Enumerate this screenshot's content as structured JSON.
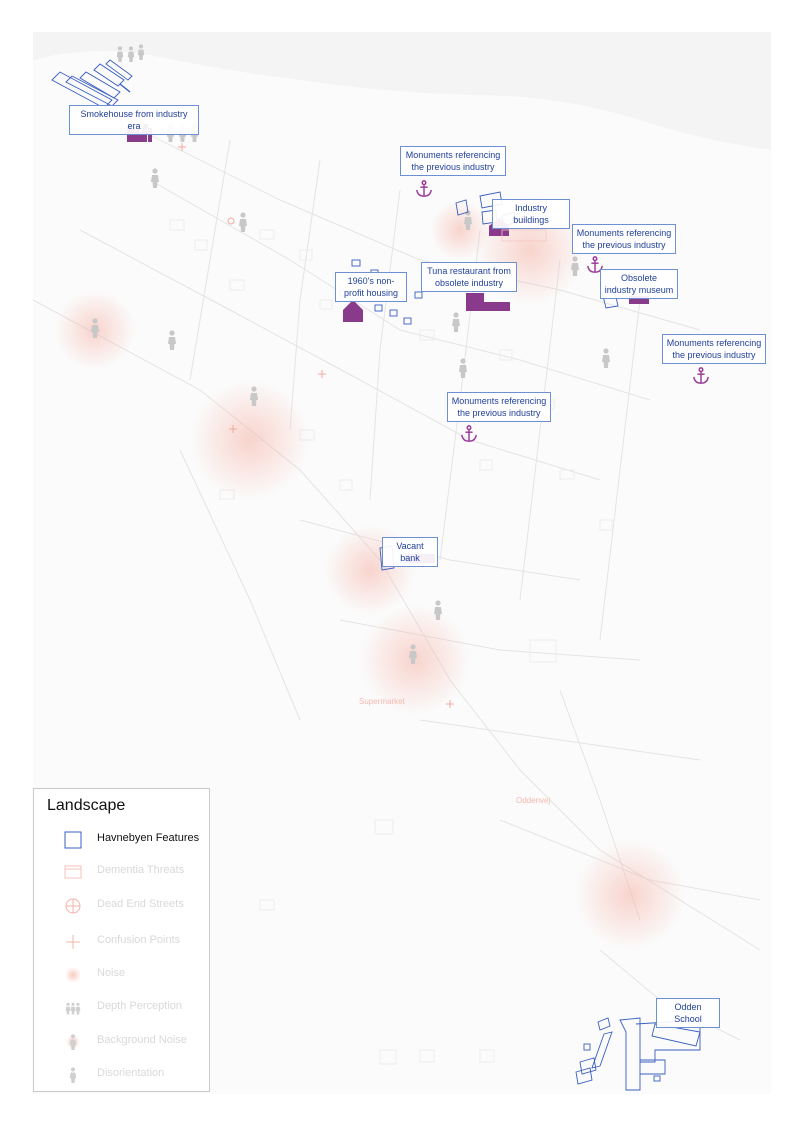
{
  "colors": {
    "feature_outline": "#3a5fc0",
    "feature_label_text": "#1f3f9a",
    "purple_icon": "#8a3a8a",
    "threat_faint": "#f4a99e",
    "figure_gray": "#c6c6c6"
  },
  "labels": {
    "smokehouse": "Smokehouse from industry era",
    "monument_1": "Monuments referencing the previous industry",
    "industry_buildings": "Industry buildings",
    "monument_2": "Monuments referencing the previous industry",
    "obsolete_museum": "Obsolete industry museum",
    "nonprofit_housing": "1960's non-profit housing",
    "tuna_restaurant": "Tuna restaurant from obsolete industry",
    "monument_3": "Monuments referencing the previous industry",
    "monument_4": "Monuments referencing the previous industry",
    "vacant_bank": "Vacant bank",
    "odden_school": "Odden School"
  },
  "faint_labels": {
    "supermarket": "Supermarket",
    "oddenvej": "Oddenvej"
  },
  "icons": {
    "anchor": "anchor-icon",
    "house": "house-icon",
    "factory": "factory-icon",
    "person": "person-icon"
  },
  "legend": {
    "title": "Landscape",
    "items": [
      {
        "label": "Havnebyen Features",
        "icon": "square-outline-icon",
        "active": true
      },
      {
        "label": "Dementia Threats",
        "icon": "rect-outline-icon",
        "active": false
      },
      {
        "label": "Dead End Streets",
        "icon": "crosshair-circle-icon",
        "active": false
      },
      {
        "label": "Confusion Points",
        "icon": "cross-icon",
        "active": false
      },
      {
        "label": "Noise",
        "icon": "noise-blob-icon",
        "active": false
      },
      {
        "label": "Depth Perception",
        "icon": "people-group-icon",
        "active": false
      },
      {
        "label": "Background Noise",
        "icon": "person-noise-icon",
        "active": false
      },
      {
        "label": "Disorientation",
        "icon": "person-icon",
        "active": false
      }
    ]
  }
}
